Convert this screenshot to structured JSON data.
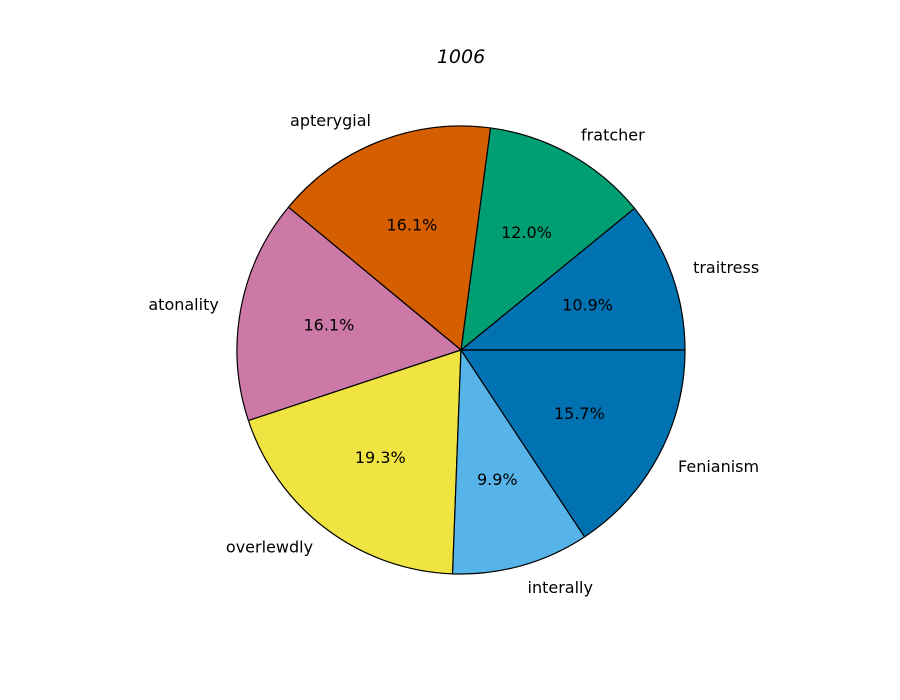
{
  "chart_data": {
    "type": "pie",
    "title": "1006",
    "categories": [
      "traitress",
      "fratcher",
      "apterygial",
      "atonality",
      "overlewdly",
      "interally",
      "Fenianism"
    ],
    "values": [
      10.9,
      12.0,
      16.1,
      16.1,
      19.3,
      9.9,
      15.7
    ],
    "value_labels": [
      "10.9%",
      "12.0%",
      "16.1%",
      "16.1%",
      "19.3%",
      "9.9%",
      "15.7%"
    ],
    "colors": [
      "#0072b2",
      "#009e73",
      "#d55e00",
      "#cc79a7",
      "#f0e442",
      "#56b4e9",
      "#0072b2"
    ],
    "start_angle": 0,
    "direction": "counterclockwise",
    "edge_color": "#000000",
    "legend": false
  }
}
